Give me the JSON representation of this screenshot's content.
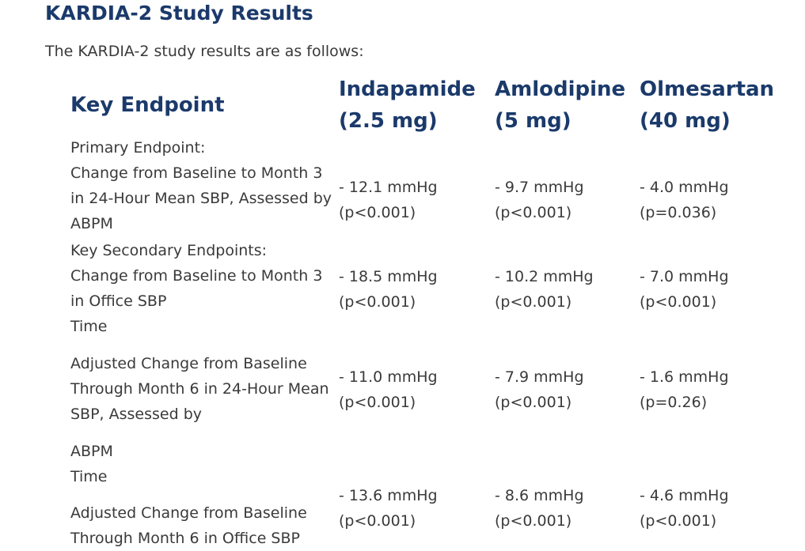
{
  "title": "KARDIA-2 Study Results",
  "intro": "The KARDIA-2 study results are as follows:",
  "table": {
    "headers": {
      "endpoint": "Key Endpoint",
      "indapamide": [
        "Indapamide",
        "(2.5 mg)"
      ],
      "amlodipine": [
        "Amlodipine",
        "(5 mg)"
      ],
      "olmesartan": [
        "Olmesartan",
        "(40 mg)"
      ]
    },
    "rows": [
      {
        "endpoint": [
          "Primary Endpoint:",
          "Change from Baseline to Month 3",
          "in 24-Hour Mean SBP, Assessed by",
          "ABPM"
        ],
        "indapamide": [
          "- 12.1 mmHg",
          "(p<0.001)"
        ],
        "amlodipine": [
          "- 9.7 mmHg",
          "(p<0.001)"
        ],
        "olmesartan": [
          "- 4.0 mmHg",
          "(p=0.036)"
        ]
      },
      {
        "endpoint": [
          "Key Secondary Endpoints:",
          "Change from Baseline to Month 3",
          "in Office SBP",
          "Time"
        ],
        "indapamide": [
          "- 18.5 mmHg",
          "(p<0.001)"
        ],
        "amlodipine": [
          "- 10.2 mmHg",
          "(p<0.001)"
        ],
        "olmesartan": [
          "- 7.0 mmHg",
          "(p<0.001)"
        ]
      },
      {
        "endpoint": [
          "Adjusted Change from Baseline",
          "Through Month 6 in 24-Hour Mean",
          "SBP, Assessed by",
          "ABPM",
          "Time"
        ],
        "indapamide": [
          "- 11.0 mmHg",
          "(p<0.001)"
        ],
        "amlodipine": [
          "- 7.9 mmHg",
          "(p<0.001)"
        ],
        "olmesartan": [
          "- 1.6 mmHg",
          "(p=0.26)"
        ]
      },
      {
        "endpoint": [
          "Adjusted Change from Baseline",
          "Through Month 6 in Office SBP"
        ],
        "indapamide": [
          "- 13.6 mmHg",
          "(p<0.001)"
        ],
        "amlodipine": [
          "- 8.6 mmHg",
          "(p<0.001)"
        ],
        "olmesartan": [
          "- 4.6 mmHg",
          "(p<0.001)"
        ]
      }
    ]
  }
}
